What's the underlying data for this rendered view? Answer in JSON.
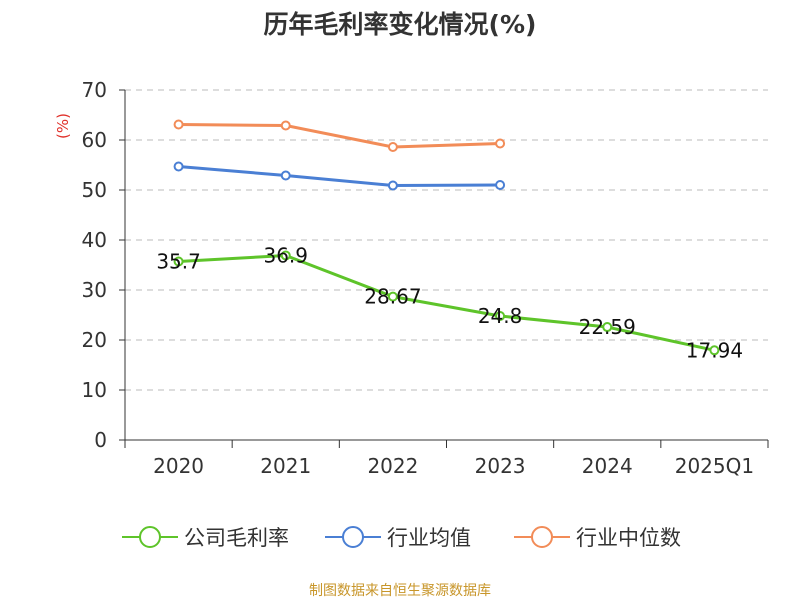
{
  "chart_data": {
    "type": "line",
    "title": "历年毛利率变化情况(%)",
    "unit_label": "(%)",
    "categories": [
      "2020",
      "2021",
      "2022",
      "2023",
      "2024",
      "2025Q1"
    ],
    "ylim": [
      0,
      70
    ],
    "y_ticks": [
      "0",
      "10",
      "20",
      "30",
      "40",
      "50",
      "60",
      "70"
    ],
    "grid": true,
    "legend_position": "bottom",
    "series": [
      {
        "name": "公司毛利率",
        "color": "#5ec42a",
        "values": [
          35.7,
          36.9,
          28.67,
          24.8,
          22.59,
          17.94
        ],
        "labels": [
          "35.7",
          "36.9",
          "28.67",
          "24.8",
          "22.59",
          "17.94"
        ]
      },
      {
        "name": "行业均值",
        "color": "#4a7fd4",
        "values": [
          54.7,
          52.9,
          50.9,
          51.0,
          null,
          null
        ]
      },
      {
        "name": "行业中位数",
        "color": "#f28c58",
        "values": [
          63.1,
          62.9,
          58.6,
          59.3,
          null,
          null
        ]
      }
    ]
  },
  "footer": {
    "source": "制图数据来自恒生聚源数据库"
  }
}
